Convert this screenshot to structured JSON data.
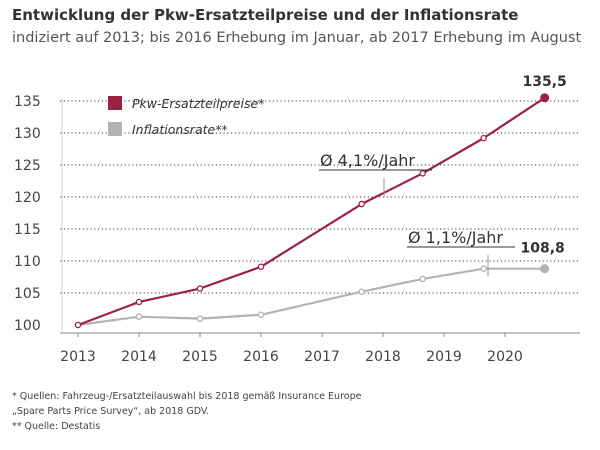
{
  "chart_data": {
    "type": "line",
    "title": "Entwicklung der Pkw-Ersatzteilpreise und der Inflationsrate",
    "subtitle": "indiziert auf 2013; bis 2016 Erhebung im Januar, ab 2017 Erhebung im August",
    "x_ticks": [
      "2013",
      "2014",
      "2015",
      "2016",
      "2017",
      "2018",
      "2019",
      "2020"
    ],
    "y_ticks": [
      "100",
      "105",
      "110",
      "115",
      "120",
      "125",
      "130",
      "135"
    ],
    "ylim": [
      99,
      137
    ],
    "grid": "horizontal dotted",
    "legend_position": "top-left",
    "series": [
      {
        "name": "Pkw-Ersatzteilpreise*",
        "color": "#9b2242",
        "x": [
          2013.0,
          2014.0,
          2015.0,
          2016.0,
          2017.65,
          2018.65,
          2019.65,
          2020.65
        ],
        "values": [
          100.0,
          103.6,
          105.7,
          109.1,
          118.9,
          123.7,
          129.2,
          135.5
        ],
        "end_label": "135,5",
        "trend_label": "Ø 4,1%/Jahr"
      },
      {
        "name": "Inflationsrate**",
        "color": "#b3b3b3",
        "x": [
          2013.0,
          2014.0,
          2015.0,
          2016.0,
          2017.65,
          2018.65,
          2019.65,
          2020.65
        ],
        "values": [
          100.0,
          101.3,
          101.0,
          101.6,
          105.2,
          107.2,
          108.8,
          108.8
        ],
        "end_label": "108,8",
        "trend_label": "Ø 1,1%/Jahr"
      }
    ]
  },
  "footnotes": {
    "line1": "* Quellen: Fahrzeug-/Ersatzteilauswahl bis 2018 gemäß Insurance Europe",
    "line2": "„Spare Parts Price Survey“, ab 2018 GDV.",
    "line3": "** Quelle: Destatis"
  }
}
